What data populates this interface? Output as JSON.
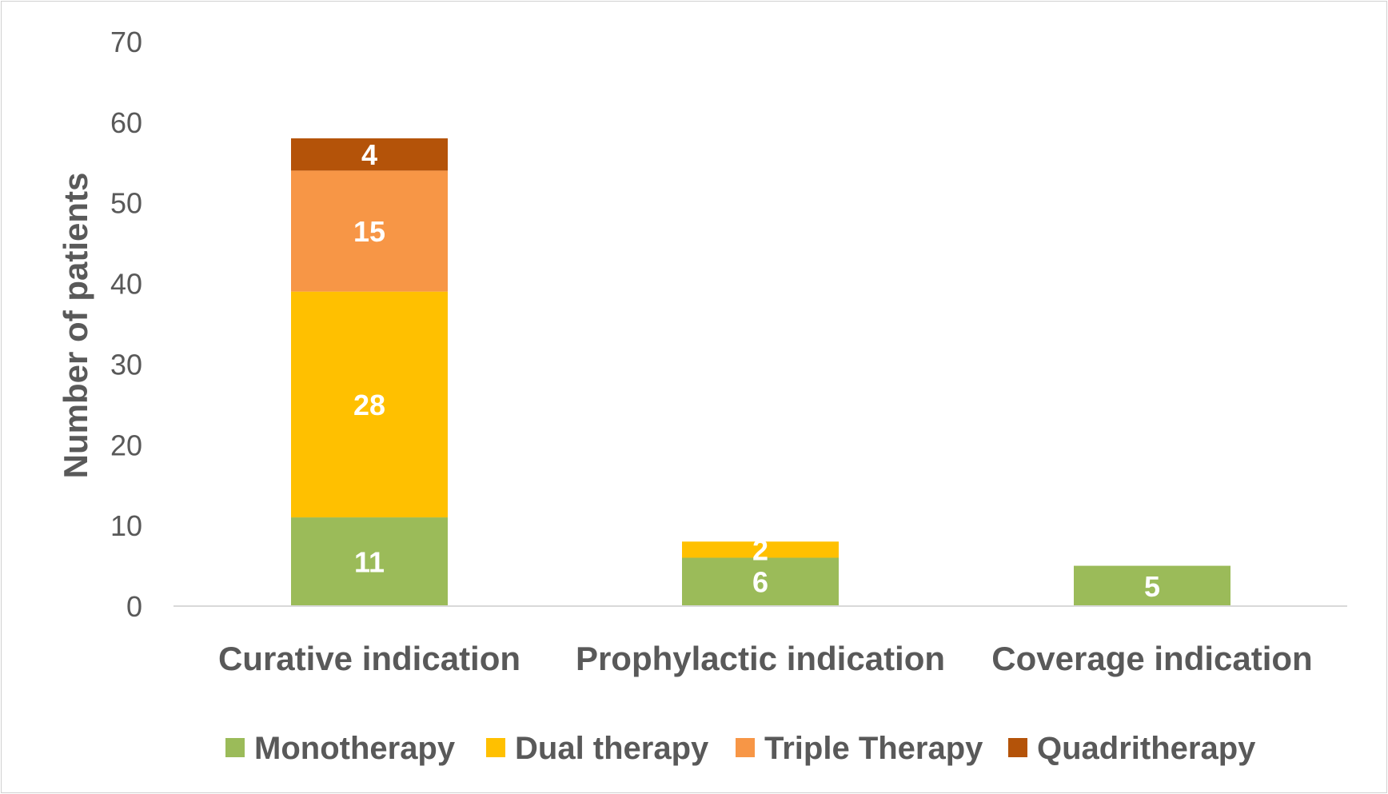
{
  "chart_data": {
    "type": "bar",
    "stacked": true,
    "categories": [
      "Curative indication",
      "Prophylactic indication",
      "Coverage indication"
    ],
    "series": [
      {
        "name": "Monotherapy",
        "values": [
          11,
          6,
          5
        ],
        "color": "#9bbb59"
      },
      {
        "name": "Dual therapy",
        "values": [
          28,
          2,
          0
        ],
        "color": "#ffc000"
      },
      {
        "name": "Triple Therapy",
        "values": [
          15,
          0,
          0
        ],
        "color": "#f79646"
      },
      {
        "name": "Quadritherapy",
        "values": [
          4,
          0,
          0
        ],
        "color": "#b45309"
      }
    ],
    "ylabel": "Number of patients",
    "ylim": [
      0,
      70
    ],
    "yticks": [
      0,
      10,
      20,
      30,
      40,
      50,
      60,
      70
    ],
    "grid": false,
    "legend_position": "bottom"
  }
}
